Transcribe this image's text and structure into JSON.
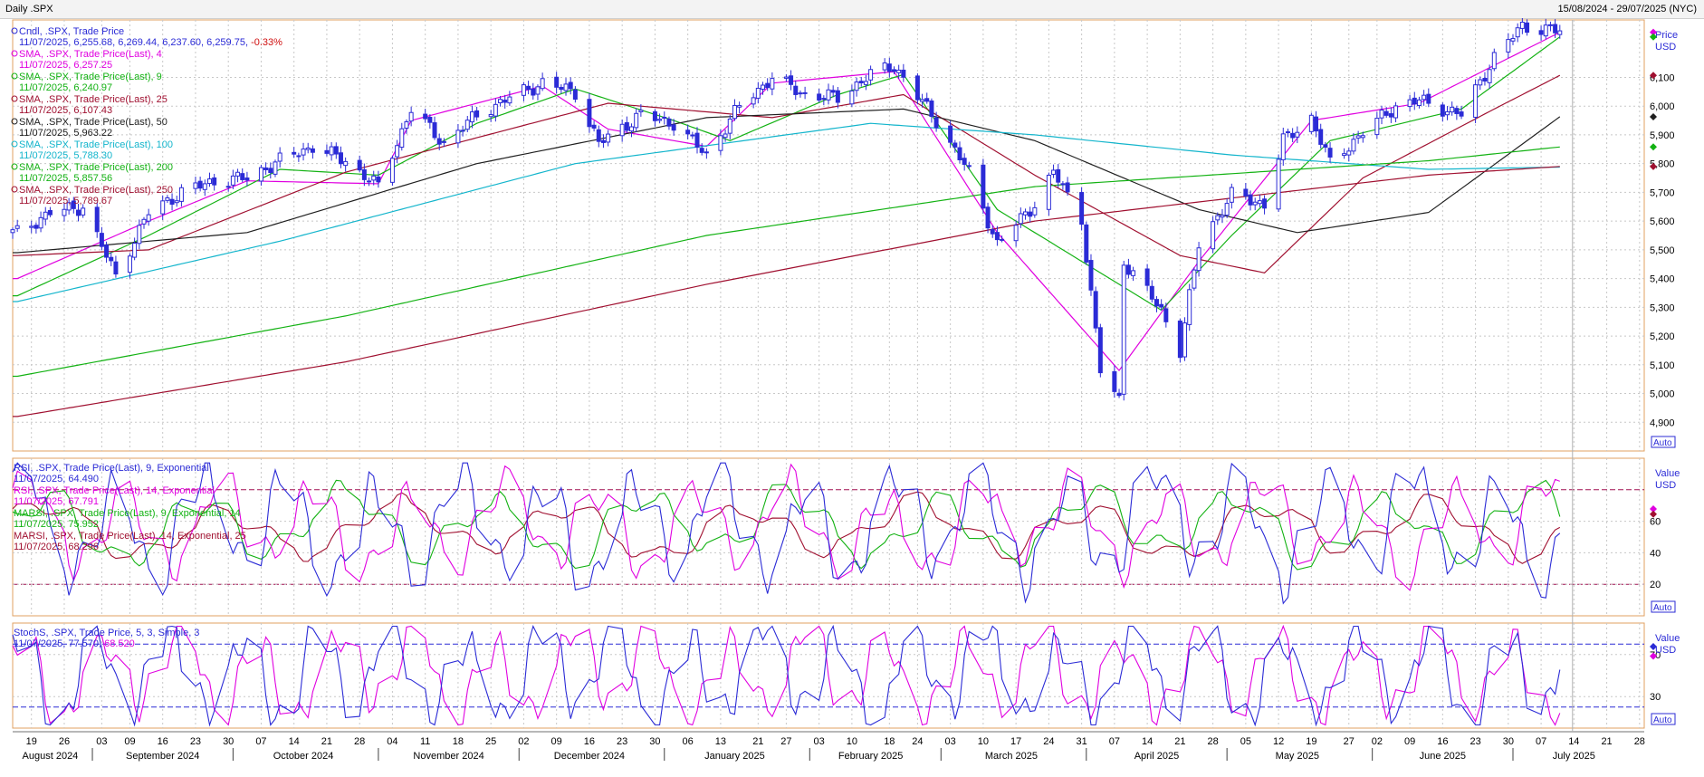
{
  "window": {
    "title": "Daily .SPX",
    "range": "15/08/2024 - 29/07/2025 (NYC)"
  },
  "colors": {
    "candle": "#2b2bd6",
    "sma4": "#e000e0",
    "sma9": "#13b213",
    "sma25": "#a01030",
    "sma50": "#202020",
    "sma100": "#13b5cc",
    "sma200": "#13b213",
    "sma250": "#a01030",
    "rsi9": "#2b2bd6",
    "rsi14": "#e000e0",
    "marsi9": "#13b213",
    "marsi14": "#a01030",
    "stochK": "#2b2bd6",
    "stochD": "#e000e0",
    "grid": "#c8c8c8",
    "ref": "#a01050"
  },
  "chart_data": [
    {
      "type": "candlestick",
      "panel": "price",
      "xlabel": "",
      "ylabel": "",
      "yunit": "USD",
      "ylim": [
        4800,
        6300
      ],
      "yticks": [
        4900,
        5000,
        5100,
        5200,
        5300,
        5400,
        5500,
        5600,
        5700,
        5800,
        5900,
        6000,
        6100
      ],
      "ytick_labels": [
        "4,900",
        "5,000",
        "5,100",
        "5,200",
        "5,300",
        "5,400",
        "5,500",
        "5,600",
        "5,700",
        "5,800",
        "5,900",
        "6,000",
        "6,100"
      ],
      "right_header": "Price",
      "right_unit": "USD",
      "auto_label": "Auto",
      "legend": [
        {
          "key": "candle",
          "line1": "Cndl, .SPX, Trade Price",
          "line2": "11/07/2025, 6,255.68, 6,269.44, 6,237.60, 6,259.75, ",
          "change": "-0.33%"
        },
        {
          "key": "sma4",
          "line1": "SMA, .SPX, Trade Price(Last),  4",
          "line2": "11/07/2025, 6,257.25"
        },
        {
          "key": "sma9",
          "line1": "SMA, .SPX, Trade Price(Last),  9",
          "line2": "11/07/2025, 6,240.97"
        },
        {
          "key": "sma25",
          "line1": "SMA, .SPX, Trade Price(Last),  25",
          "line2": "11/07/2025, 6,107.43"
        },
        {
          "key": "sma50",
          "line1": "SMA, .SPX, Trade Price(Last),  50",
          "line2": "11/07/2025, 5,963.22"
        },
        {
          "key": "sma100",
          "line1": "SMA, .SPX, Trade Price(Last),  100",
          "line2": "11/07/2025, 5,788.30"
        },
        {
          "key": "sma200",
          "line1": "SMA, .SPX, Trade Price(Last),  200",
          "line2": "11/07/2025, 5,857.56"
        },
        {
          "key": "sma250",
          "line1": "SMA, .SPX, Trade Price(Last),  250",
          "line2": "11/07/2025, 5,789.67"
        }
      ],
      "close_anchors": [
        [
          "2024-08-16",
          5560
        ],
        [
          "2024-08-23",
          5630
        ],
        [
          "2024-08-30",
          5650
        ],
        [
          "2024-09-06",
          5410
        ],
        [
          "2024-09-13",
          5630
        ],
        [
          "2024-09-20",
          5700
        ],
        [
          "2024-09-27",
          5740
        ],
        [
          "2024-10-04",
          5750
        ],
        [
          "2024-10-11",
          5810
        ],
        [
          "2024-10-18",
          5860
        ],
        [
          "2024-10-25",
          5810
        ],
        [
          "2024-11-01",
          5720
        ],
        [
          "2024-11-08",
          5990
        ],
        [
          "2024-11-15",
          5870
        ],
        [
          "2024-11-22",
          5970
        ],
        [
          "2024-11-29",
          6030
        ],
        [
          "2024-12-06",
          6080
        ],
        [
          "2024-12-13",
          6050
        ],
        [
          "2024-12-18",
          5870
        ],
        [
          "2024-12-27",
          5970
        ],
        [
          "2025-01-03",
          5940
        ],
        [
          "2025-01-10",
          5830
        ],
        [
          "2025-01-17",
          6000
        ],
        [
          "2025-01-24",
          6100
        ],
        [
          "2025-01-31",
          6040
        ],
        [
          "2025-02-07",
          6030
        ],
        [
          "2025-02-14",
          6110
        ],
        [
          "2025-02-19",
          6140
        ],
        [
          "2025-02-28",
          5950
        ],
        [
          "2025-03-07",
          5770
        ],
        [
          "2025-03-13",
          5520
        ],
        [
          "2025-03-21",
          5660
        ],
        [
          "2025-03-25",
          5770
        ],
        [
          "2025-03-31",
          5610
        ],
        [
          "2025-04-04",
          5080
        ],
        [
          "2025-04-08",
          4980
        ],
        [
          "2025-04-09",
          5460
        ],
        [
          "2025-04-17",
          5290
        ],
        [
          "2025-04-21",
          5150
        ],
        [
          "2025-04-25",
          5520
        ],
        [
          "2025-05-02",
          5690
        ],
        [
          "2025-05-09",
          5660
        ],
        [
          "2025-05-13",
          5880
        ],
        [
          "2025-05-19",
          5960
        ],
        [
          "2025-05-23",
          5800
        ],
        [
          "2025-05-30",
          5910
        ],
        [
          "2025-06-06",
          6000
        ],
        [
          "2025-06-11",
          6020
        ],
        [
          "2025-06-20",
          5970
        ],
        [
          "2025-06-27",
          6170
        ],
        [
          "2025-07-03",
          6280
        ],
        [
          "2025-07-11",
          6260
        ]
      ],
      "sma_anchors": {
        "sma4": [
          [
            "2024-08-16",
            5400
          ],
          [
            "2024-09-13",
            5600
          ],
          [
            "2024-10-04",
            5740
          ],
          [
            "2024-11-01",
            5730
          ],
          [
            "2024-11-08",
            5950
          ],
          [
            "2024-12-06",
            6070
          ],
          [
            "2024-12-20",
            5920
          ],
          [
            "2025-01-10",
            5860
          ],
          [
            "2025-01-24",
            6080
          ],
          [
            "2025-02-19",
            6120
          ],
          [
            "2025-03-13",
            5560
          ],
          [
            "2025-04-08",
            5080
          ],
          [
            "2025-04-25",
            5460
          ],
          [
            "2025-05-19",
            5950
          ],
          [
            "2025-06-11",
            6010
          ],
          [
            "2025-07-11",
            6257
          ]
        ],
        "sma9": [
          [
            "2024-08-16",
            5340
          ],
          [
            "2024-09-13",
            5550
          ],
          [
            "2024-10-11",
            5780
          ],
          [
            "2024-11-01",
            5760
          ],
          [
            "2024-11-22",
            5940
          ],
          [
            "2024-12-13",
            6060
          ],
          [
            "2025-01-03",
            5950
          ],
          [
            "2025-01-15",
            5880
          ],
          [
            "2025-02-07",
            6040
          ],
          [
            "2025-02-21",
            6110
          ],
          [
            "2025-03-13",
            5640
          ],
          [
            "2025-04-17",
            5290
          ],
          [
            "2025-05-02",
            5550
          ],
          [
            "2025-05-23",
            5880
          ],
          [
            "2025-06-20",
            5990
          ],
          [
            "2025-07-11",
            6241
          ]
        ],
        "sma25": [
          [
            "2024-08-16",
            5480
          ],
          [
            "2024-09-13",
            5500
          ],
          [
            "2024-10-25",
            5770
          ],
          [
            "2024-11-29",
            5920
          ],
          [
            "2024-12-20",
            6010
          ],
          [
            "2025-01-24",
            5960
          ],
          [
            "2025-02-21",
            6040
          ],
          [
            "2025-03-21",
            5760
          ],
          [
            "2025-04-21",
            5480
          ],
          [
            "2025-05-09",
            5420
          ],
          [
            "2025-05-30",
            5750
          ],
          [
            "2025-06-27",
            5990
          ],
          [
            "2025-07-11",
            6107
          ]
        ],
        "sma50": [
          [
            "2024-08-16",
            5490
          ],
          [
            "2024-10-04",
            5560
          ],
          [
            "2024-11-22",
            5800
          ],
          [
            "2025-01-10",
            5960
          ],
          [
            "2025-02-21",
            5990
          ],
          [
            "2025-03-21",
            5880
          ],
          [
            "2025-04-25",
            5640
          ],
          [
            "2025-05-16",
            5560
          ],
          [
            "2025-06-13",
            5630
          ],
          [
            "2025-07-11",
            5963
          ]
        ],
        "sma100": [
          [
            "2024-08-16",
            5320
          ],
          [
            "2024-10-11",
            5530
          ],
          [
            "2024-12-13",
            5800
          ],
          [
            "2025-02-14",
            5940
          ],
          [
            "2025-03-21",
            5900
          ],
          [
            "2025-05-02",
            5830
          ],
          [
            "2025-06-13",
            5780
          ],
          [
            "2025-07-11",
            5788
          ]
        ],
        "sma200": [
          [
            "2024-08-16",
            5060
          ],
          [
            "2024-10-25",
            5270
          ],
          [
            "2025-01-10",
            5550
          ],
          [
            "2025-03-21",
            5720
          ],
          [
            "2025-06-13",
            5810
          ],
          [
            "2025-07-11",
            5858
          ]
        ],
        "sma250": [
          [
            "2024-08-16",
            4920
          ],
          [
            "2024-10-25",
            5110
          ],
          [
            "2025-01-10",
            5380
          ],
          [
            "2025-03-21",
            5600
          ],
          [
            "2025-06-13",
            5760
          ],
          [
            "2025-07-11",
            5790
          ]
        ]
      }
    },
    {
      "type": "line",
      "panel": "rsi",
      "ylim": [
        0,
        100
      ],
      "yticks": [
        20,
        40,
        60
      ],
      "ytick_labels": [
        "20",
        "40",
        "60"
      ],
      "ref_lines": [
        20,
        80
      ],
      "right_header": "Value",
      "right_unit": "USD",
      "auto_label": "Auto",
      "legend": [
        {
          "key": "rsi9",
          "line1": "RSI, .SPX, Trade Price(Last),  9, Exponential",
          "line2": "11/07/2025, 64.490"
        },
        {
          "key": "rsi14",
          "line1": "RSI, .SPX, Trade Price(Last),  14, Exponential",
          "line2": "11/07/2025, 67.791"
        },
        {
          "key": "marsi9",
          "line1": "MARSI, .SPX, Trade Price(Last),  9, Exponential, 14",
          "line2": "11/07/2025, 75.952"
        },
        {
          "key": "marsi14",
          "line1": "MARSI, .SPX, Trade Price(Last),  14, Exponential, 25",
          "line2": "11/07/2025, 68.296"
        }
      ]
    },
    {
      "type": "line",
      "panel": "stochastic",
      "ylim": [
        0,
        100
      ],
      "yticks": [
        30,
        70
      ],
      "ytick_labels": [
        "30",
        "70"
      ],
      "ref_lines": [
        20,
        80
      ],
      "right_header": "Value",
      "right_unit": "USD",
      "auto_label": "Auto",
      "legend": [
        {
          "key": "stochK",
          "line1": "StochS, .SPX, Trade Price,  5, 3, Simple, 3",
          "line2": "11/07/2025, 77.570, ",
          "line2b": "68.520"
        }
      ]
    }
  ],
  "xaxis": {
    "start": "2024-08-15",
    "end": "2025-07-29",
    "day_ticks": [
      [
        "2024-08-19",
        "19"
      ],
      [
        "2024-08-26",
        "26"
      ],
      [
        "2024-09-03",
        "03"
      ],
      [
        "2024-09-09",
        "09"
      ],
      [
        "2024-09-16",
        "16"
      ],
      [
        "2024-09-23",
        "23"
      ],
      [
        "2024-09-30",
        "30"
      ],
      [
        "2024-10-07",
        "07"
      ],
      [
        "2024-10-14",
        "14"
      ],
      [
        "2024-10-21",
        "21"
      ],
      [
        "2024-10-28",
        "28"
      ],
      [
        "2024-11-04",
        "04"
      ],
      [
        "2024-11-11",
        "11"
      ],
      [
        "2024-11-18",
        "18"
      ],
      [
        "2024-11-25",
        "25"
      ],
      [
        "2024-12-02",
        "02"
      ],
      [
        "2024-12-09",
        "09"
      ],
      [
        "2024-12-16",
        "16"
      ],
      [
        "2024-12-23",
        "23"
      ],
      [
        "2024-12-30",
        "30"
      ],
      [
        "2025-01-06",
        "06"
      ],
      [
        "2025-01-13",
        "13"
      ],
      [
        "2025-01-21",
        "21"
      ],
      [
        "2025-01-27",
        "27"
      ],
      [
        "2025-02-03",
        "03"
      ],
      [
        "2025-02-10",
        "10"
      ],
      [
        "2025-02-18",
        "18"
      ],
      [
        "2025-02-24",
        "24"
      ],
      [
        "2025-03-03",
        "03"
      ],
      [
        "2025-03-10",
        "10"
      ],
      [
        "2025-03-17",
        "17"
      ],
      [
        "2025-03-24",
        "24"
      ],
      [
        "2025-03-31",
        "31"
      ],
      [
        "2025-04-07",
        "07"
      ],
      [
        "2025-04-14",
        "14"
      ],
      [
        "2025-04-21",
        "21"
      ],
      [
        "2025-04-28",
        "28"
      ],
      [
        "2025-05-05",
        "05"
      ],
      [
        "2025-05-12",
        "12"
      ],
      [
        "2025-05-19",
        "19"
      ],
      [
        "2025-05-27",
        "27"
      ],
      [
        "2025-06-02",
        "02"
      ],
      [
        "2025-06-09",
        "09"
      ],
      [
        "2025-06-16",
        "16"
      ],
      [
        "2025-06-23",
        "23"
      ],
      [
        "2025-06-30",
        "30"
      ],
      [
        "2025-07-07",
        "07"
      ],
      [
        "2025-07-14",
        "14"
      ],
      [
        "2025-07-21",
        "21"
      ],
      [
        "2025-07-28",
        "28"
      ]
    ],
    "month_labels": [
      [
        "2024-08-23",
        "August 2024"
      ],
      [
        "2024-09-16",
        "September 2024"
      ],
      [
        "2024-10-16",
        "October 2024"
      ],
      [
        "2024-11-16",
        "November 2024"
      ],
      [
        "2024-12-16",
        "December 2024"
      ],
      [
        "2025-01-16",
        "January 2025"
      ],
      [
        "2025-02-14",
        "February 2025"
      ],
      [
        "2025-03-16",
        "March 2025"
      ],
      [
        "2025-04-16",
        "April 2025"
      ],
      [
        "2025-05-16",
        "May 2025"
      ],
      [
        "2025-06-16",
        "June 2025"
      ],
      [
        "2025-07-14",
        "July 2025"
      ]
    ],
    "month_starts": [
      "2024-09-01",
      "2024-10-01",
      "2024-11-01",
      "2024-12-01",
      "2025-01-01",
      "2025-02-01",
      "2025-03-01",
      "2025-04-01",
      "2025-05-01",
      "2025-06-01",
      "2025-07-01"
    ],
    "cursor_date": "2025-07-11"
  }
}
